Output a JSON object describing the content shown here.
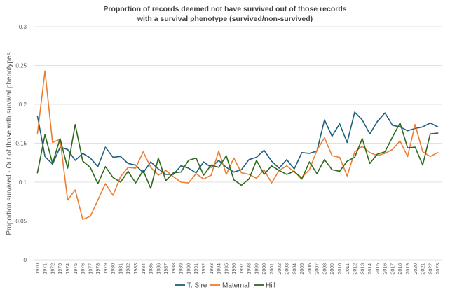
{
  "chart_data": {
    "type": "line",
    "title_line1": "Proportion of records deemed not have survived out of those records",
    "title_line2": "with a survival phenotype (survived/non-survived)",
    "ylabel": "Proportion survived - Out of those with survival phenotypes",
    "xlabel": "",
    "ylim": [
      0,
      0.3
    ],
    "yticks": [
      0,
      0.05,
      0.1,
      0.15,
      0.2,
      0.25,
      0.3
    ],
    "ytick_labels": [
      "0",
      "0.05",
      "0.1",
      "0.15",
      "0.2",
      "0.25",
      "0.3"
    ],
    "grid": "horizontal",
    "legend_position": "bottom",
    "x": [
      "1970",
      "1971",
      "1972",
      "1973",
      "1974",
      "1975",
      "1976",
      "1977",
      "1978",
      "1979",
      "1980",
      "1981",
      "1982",
      "1983",
      "1984",
      "1985",
      "1986",
      "1987",
      "1988",
      "1989",
      "1990",
      "1991",
      "1992",
      "1993",
      "1994",
      "1995",
      "1996",
      "1997",
      "1998",
      "1999",
      "2000",
      "2001",
      "2002",
      "2003",
      "2004",
      "2005",
      "2006",
      "2007",
      "2008",
      "2009",
      "2010",
      "2011",
      "2012",
      "2013",
      "2014",
      "2015",
      "2016",
      "2017",
      "2018",
      "2019",
      "2020",
      "2021",
      "2022",
      "2023"
    ],
    "series": [
      {
        "name": "T. Sire",
        "color": "#1f5f7f",
        "values": [
          0.185,
          0.133,
          0.123,
          0.145,
          0.142,
          0.128,
          0.137,
          0.131,
          0.12,
          0.145,
          0.132,
          0.133,
          0.124,
          0.122,
          0.112,
          0.126,
          0.117,
          0.11,
          0.11,
          0.121,
          0.118,
          0.112,
          0.126,
          0.119,
          0.128,
          0.119,
          0.113,
          0.116,
          0.129,
          0.132,
          0.141,
          0.127,
          0.118,
          0.129,
          0.117,
          0.138,
          0.137,
          0.14,
          0.18,
          0.159,
          0.175,
          0.151,
          0.19,
          0.18,
          0.162,
          0.178,
          0.189,
          0.173,
          0.171,
          0.166,
          0.169,
          0.171,
          0.176,
          0.171
        ]
      },
      {
        "name": "Maternal",
        "color": "#ed7d31",
        "values": [
          0.162,
          0.243,
          0.151,
          0.155,
          0.077,
          0.09,
          0.052,
          0.056,
          0.077,
          0.098,
          0.083,
          0.107,
          0.119,
          0.118,
          0.139,
          0.119,
          0.109,
          0.115,
          0.107,
          0.1,
          0.099,
          0.111,
          0.104,
          0.109,
          0.14,
          0.11,
          0.131,
          0.112,
          0.11,
          0.105,
          0.116,
          0.099,
          0.115,
          0.121,
          0.113,
          0.106,
          0.116,
          0.141,
          0.157,
          0.134,
          0.132,
          0.108,
          0.139,
          0.146,
          0.138,
          0.134,
          0.137,
          0.142,
          0.153,
          0.133,
          0.174,
          0.139,
          0.133,
          0.138
        ]
      },
      {
        "name": "Hill",
        "color": "#2e6a1e",
        "values": [
          0.112,
          0.161,
          0.124,
          0.156,
          0.118,
          0.174,
          0.127,
          0.119,
          0.098,
          0.12,
          0.106,
          0.1,
          0.114,
          0.099,
          0.115,
          0.092,
          0.131,
          0.102,
          0.112,
          0.113,
          0.128,
          0.131,
          0.109,
          0.122,
          0.119,
          0.134,
          0.103,
          0.096,
          0.104,
          0.128,
          0.11,
          0.121,
          0.115,
          0.11,
          0.114,
          0.104,
          0.126,
          0.111,
          0.129,
          0.116,
          0.114,
          0.127,
          0.132,
          0.156,
          0.124,
          0.136,
          0.139,
          0.158,
          0.176,
          0.144,
          0.145,
          0.122,
          0.162,
          0.163
        ]
      }
    ]
  }
}
